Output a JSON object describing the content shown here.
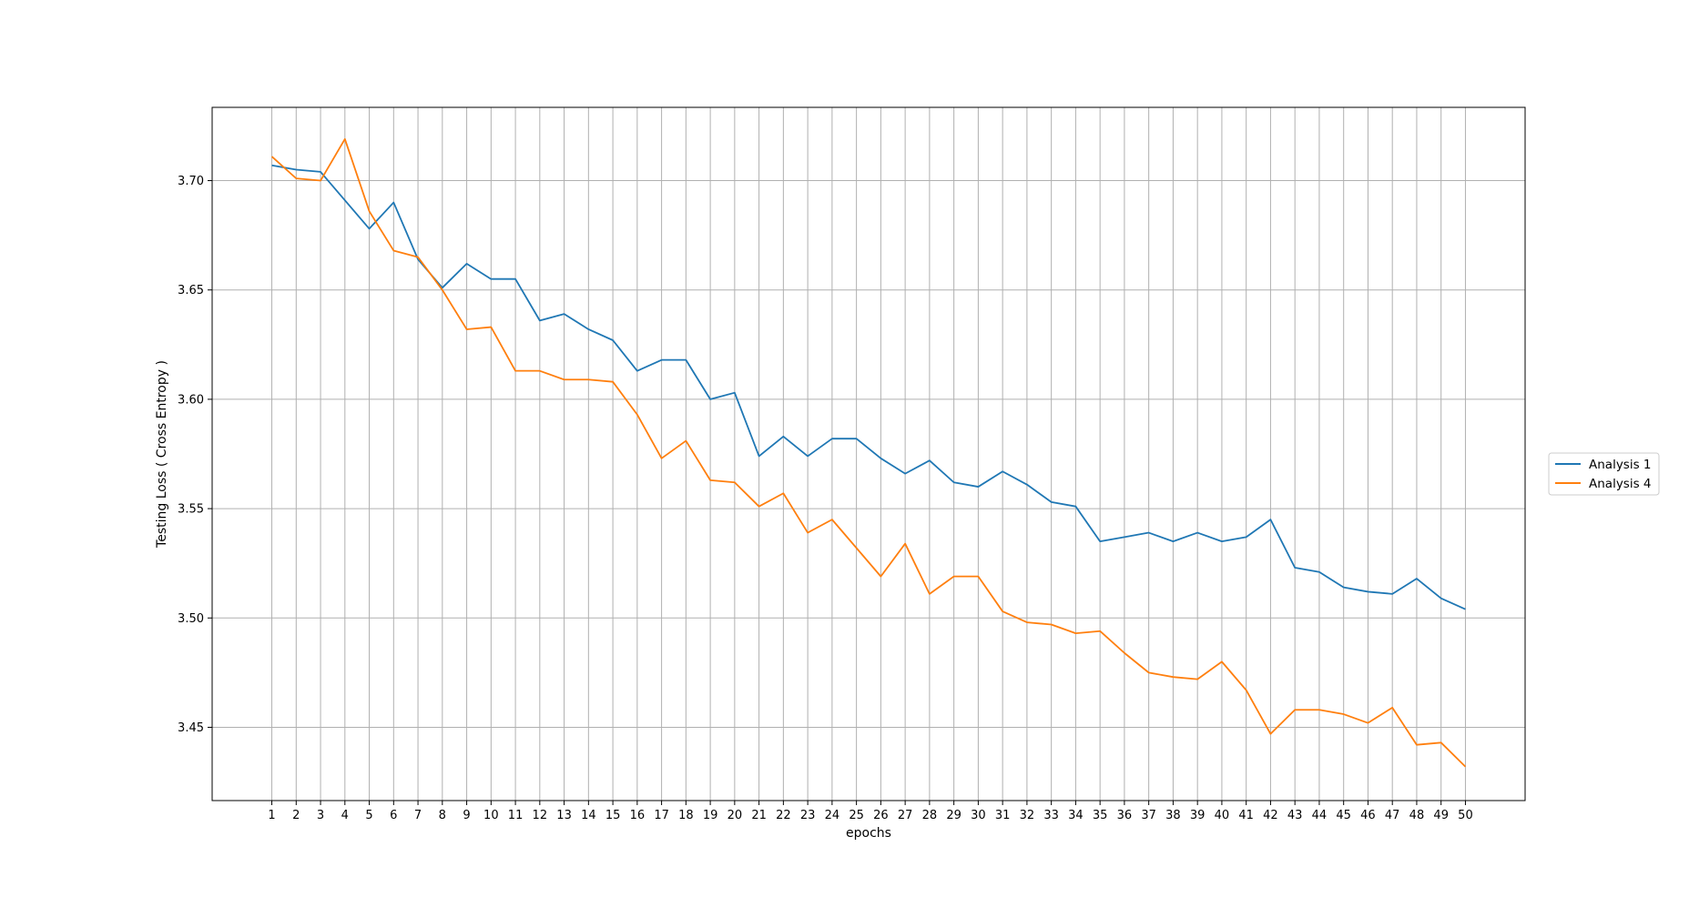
{
  "chart_data": {
    "type": "line",
    "title": "",
    "xlabel": "epochs",
    "ylabel": "Testing Loss ( Cross Entropy )",
    "x": [
      1,
      2,
      3,
      4,
      5,
      6,
      7,
      8,
      9,
      10,
      11,
      12,
      13,
      14,
      15,
      16,
      17,
      18,
      19,
      20,
      21,
      22,
      23,
      24,
      25,
      26,
      27,
      28,
      29,
      30,
      31,
      32,
      33,
      34,
      35,
      36,
      37,
      38,
      39,
      40,
      41,
      42,
      43,
      44,
      45,
      46,
      47,
      48,
      49,
      50
    ],
    "xlim": [
      -1.45,
      52.45
    ],
    "ylim": [
      3.4165,
      3.7335
    ],
    "yticks": [
      3.45,
      3.5,
      3.55,
      3.6,
      3.65,
      3.7
    ],
    "ytick_labels": [
      "3.45",
      "3.50",
      "3.55",
      "3.60",
      "3.65",
      "3.70"
    ],
    "grid": true,
    "legend_position": "center-right outside",
    "series": [
      {
        "name": "Analysis 1",
        "color": "#1f77b4",
        "values": [
          3.707,
          3.705,
          3.704,
          3.691,
          3.678,
          3.69,
          3.664,
          3.651,
          3.662,
          3.655,
          3.655,
          3.636,
          3.639,
          3.632,
          3.627,
          3.613,
          3.618,
          3.618,
          3.6,
          3.603,
          3.574,
          3.583,
          3.574,
          3.582,
          3.582,
          3.573,
          3.566,
          3.572,
          3.562,
          3.56,
          3.567,
          3.561,
          3.553,
          3.551,
          3.535,
          3.537,
          3.539,
          3.535,
          3.539,
          3.535,
          3.537,
          3.545,
          3.523,
          3.521,
          3.514,
          3.512,
          3.511,
          3.518,
          3.509,
          3.504
        ]
      },
      {
        "name": "Analysis 4",
        "color": "#ff7f0e",
        "values": [
          3.711,
          3.701,
          3.7,
          3.719,
          3.686,
          3.668,
          3.665,
          3.65,
          3.632,
          3.633,
          3.613,
          3.613,
          3.609,
          3.609,
          3.608,
          3.593,
          3.573,
          3.581,
          3.563,
          3.562,
          3.551,
          3.557,
          3.539,
          3.545,
          3.532,
          3.519,
          3.534,
          3.511,
          3.519,
          3.519,
          3.503,
          3.498,
          3.497,
          3.493,
          3.494,
          3.484,
          3.475,
          3.473,
          3.472,
          3.48,
          3.467,
          3.447,
          3.458,
          3.458,
          3.456,
          3.452,
          3.459,
          3.442,
          3.443,
          3.432
        ]
      }
    ]
  }
}
